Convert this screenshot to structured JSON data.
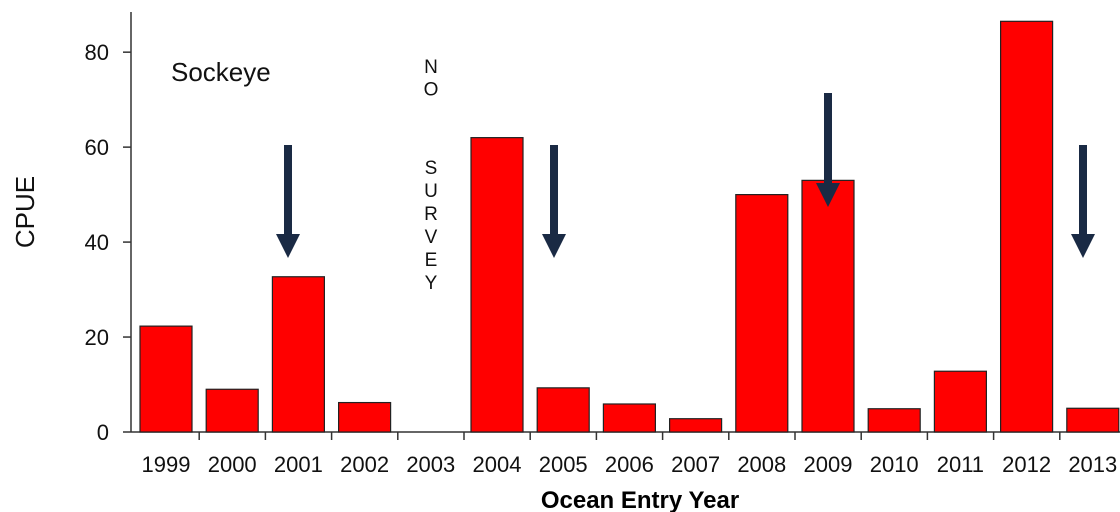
{
  "chart_data": {
    "type": "bar",
    "title": "",
    "xlabel": "Ocean Entry Year",
    "ylabel": "CPUE",
    "ylim": [
      0,
      88
    ],
    "yticks": [
      0,
      20,
      40,
      60,
      80
    ],
    "grid": false,
    "categories": [
      "1999",
      "2000",
      "2001",
      "2002",
      "2003",
      "2004",
      "2005",
      "2006",
      "2007",
      "2008",
      "2009",
      "2010",
      "2011",
      "2012",
      "2013"
    ],
    "values": [
      22.3,
      9,
      32.7,
      6.2,
      null,
      62,
      9.3,
      5.9,
      2.8,
      50,
      53,
      4.9,
      12.8,
      86.5,
      5
    ],
    "bar_color": "#ff0000",
    "arrow_color": "#1a2a44",
    "annotations": {
      "panel_label": "Sockeye",
      "no_survey_letters": [
        "N",
        "O",
        "",
        "S",
        "U",
        "R",
        "V",
        "E",
        "Y"
      ],
      "arrow_years": [
        "2001",
        "2005",
        "2009",
        "2013"
      ]
    }
  }
}
